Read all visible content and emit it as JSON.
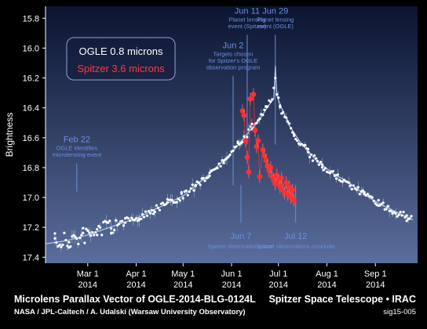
{
  "chart_data": {
    "type": "scatter",
    "title": "Microlens Parallax Vector of OGLE-2014-BLG-0124L",
    "ylabel": "Brightness",
    "xlabel": "",
    "x_ticks": [
      {
        "date": "2014-03-01",
        "line1": "Mar 1",
        "line2": "2014"
      },
      {
        "date": "2014-04-01",
        "line1": "Apr 1",
        "line2": "2014"
      },
      {
        "date": "2014-05-01",
        "line1": "May 1",
        "line2": "2014"
      },
      {
        "date": "2014-06-01",
        "line1": "Jun 1",
        "line2": "2014"
      },
      {
        "date": "2014-07-01",
        "line1": "Jul 1",
        "line2": "2014"
      },
      {
        "date": "2014-08-01",
        "line1": "Aug 1",
        "line2": "2014"
      },
      {
        "date": "2014-09-01",
        "line1": "Sep 1",
        "line2": "2014"
      }
    ],
    "xlim": [
      "2014-02-02",
      "2014-09-28"
    ],
    "y_ticks": [
      15.8,
      16.0,
      16.2,
      16.4,
      16.6,
      16.8,
      17.0,
      17.2,
      17.4
    ],
    "ylim": [
      15.72,
      17.44
    ],
    "y_inverted": true,
    "grid": false,
    "legend_position": "top-left",
    "colors": {
      "ogle": "#ffffff",
      "ogle_curve": "#b8c8ee",
      "spitzer": "#ff3030",
      "annotation": "#6a8fe0",
      "plot_bg_top": "#0b1430",
      "plot_bg_bottom": "#5a6d9c"
    },
    "series": [
      {
        "name": "OGLE 0.8 microns",
        "model": [
          [
            "2014-02-02",
            17.31
          ],
          [
            "2014-02-15",
            17.29
          ],
          [
            "2014-03-01",
            17.25
          ],
          [
            "2014-03-15",
            17.2
          ],
          [
            "2014-04-01",
            17.14
          ],
          [
            "2014-04-15",
            17.07
          ],
          [
            "2014-05-01",
            16.99
          ],
          [
            "2014-05-15",
            16.87
          ],
          [
            "2014-06-01",
            16.7
          ],
          [
            "2014-06-10",
            16.59
          ],
          [
            "2014-06-20",
            16.46
          ],
          [
            "2014-06-25",
            16.38
          ],
          [
            "2014-06-28",
            16.34
          ],
          [
            "2014-06-29",
            16.12
          ],
          [
            "2014-06-30",
            16.32
          ],
          [
            "2014-07-03",
            16.4
          ],
          [
            "2014-07-08",
            16.52
          ],
          [
            "2014-07-15",
            16.63
          ],
          [
            "2014-07-25",
            16.75
          ],
          [
            "2014-08-05",
            16.84
          ],
          [
            "2014-08-15",
            16.9
          ],
          [
            "2014-08-25",
            16.98
          ],
          [
            "2014-09-05",
            17.05
          ],
          [
            "2014-09-15",
            17.1
          ],
          [
            "2014-09-25",
            17.15
          ]
        ]
      },
      {
        "name": "Spitzer 3.6 microns",
        "points": [
          [
            "2014-06-08",
            16.42
          ],
          [
            "2014-06-09",
            16.45
          ],
          [
            "2014-06-10",
            16.62
          ],
          [
            "2014-06-11",
            16.73
          ],
          [
            "2014-06-12",
            16.83
          ],
          [
            "2014-06-13",
            16.34
          ],
          [
            "2014-06-15",
            16.31
          ],
          [
            "2014-06-16",
            16.55
          ],
          [
            "2014-06-17",
            16.66
          ],
          [
            "2014-06-18",
            16.62
          ],
          [
            "2014-06-19",
            16.86
          ],
          [
            "2014-06-21",
            16.68
          ],
          [
            "2014-06-22",
            16.72
          ],
          [
            "2014-06-23",
            16.75
          ],
          [
            "2014-06-24",
            16.79
          ],
          [
            "2014-06-25",
            16.82
          ],
          [
            "2014-06-26",
            16.8
          ],
          [
            "2014-06-27",
            16.86
          ],
          [
            "2014-06-28",
            16.88
          ],
          [
            "2014-06-29",
            16.91
          ],
          [
            "2014-06-30",
            16.85
          ],
          [
            "2014-07-01",
            16.89
          ],
          [
            "2014-07-02",
            16.93
          ],
          [
            "2014-07-03",
            16.87
          ],
          [
            "2014-07-04",
            16.95
          ],
          [
            "2014-07-05",
            16.97
          ],
          [
            "2014-07-06",
            16.9
          ],
          [
            "2014-07-07",
            16.98
          ],
          [
            "2014-07-08",
            16.93
          ],
          [
            "2014-07-09",
            17.0
          ],
          [
            "2014-07-10",
            16.95
          ],
          [
            "2014-07-11",
            17.02
          ]
        ]
      }
    ],
    "annotations": [
      {
        "date_label": "Feb 22",
        "lines": [
          "OGLE identifies",
          "microlensing event"
        ],
        "x": "2014-02-22",
        "y": 16.63
      },
      {
        "date_label": "Jun 2",
        "lines": [
          "Targets chosen",
          "for Spitzer's OGLE",
          "observation program"
        ],
        "x": "2014-06-02",
        "y": 16.0
      },
      {
        "date_label": "Jun 11",
        "lines": [
          "Planet lensing",
          "event (Spitzer)"
        ],
        "x": "2014-06-11",
        "y": 15.77
      },
      {
        "date_label": "Jun 29",
        "lines": [
          "Planet lensing",
          "event (OGLE)"
        ],
        "x": "2014-06-29",
        "y": 15.77
      },
      {
        "date_label": "Jun 7",
        "lines": [
          "Spitzer observations start"
        ],
        "x": "2014-06-07",
        "y": 17.2
      },
      {
        "date_label": "Jul 12",
        "lines": [
          "Spitzer observations conclude"
        ],
        "x": "2014-07-12",
        "y": 17.2
      }
    ]
  },
  "footer": {
    "title": "Microlens Parallax Vector of OGLE-2014-BLG-0124L",
    "mission": "Spitzer Space Telescope • IRAC",
    "credit": "NASA / JPL-Caltech / A. Udalski (Warsaw University Observatory)",
    "id": "sig15-005"
  }
}
